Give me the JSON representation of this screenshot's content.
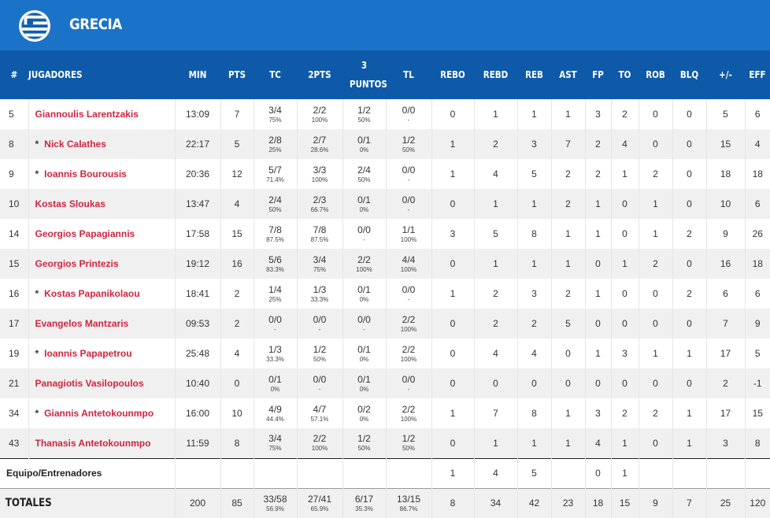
{
  "team": {
    "name": "GRECIA",
    "flag_icon": "greece-flag-icon"
  },
  "colors": {
    "header": "#1b73c7",
    "table_header": "#0f5aa8",
    "player_name": "#d0253f"
  },
  "columns": [
    "#",
    "JUGADORES",
    "MIN",
    "PTS",
    "TC",
    "2PTS",
    "3 PUNTOS",
    "TL",
    "REBO",
    "REBD",
    "REB",
    "AST",
    "FP",
    "TO",
    "ROB",
    "BLQ",
    "+/-",
    "EFF"
  ],
  "players": [
    {
      "num": "5",
      "starter": "",
      "name": "Giannoulis Larentzakis",
      "min": "13:09",
      "pts": "7",
      "tc": "3/4",
      "tc_pct": "75%",
      "p2": "2/2",
      "p2_pct": "100%",
      "p3": "1/2",
      "p3_pct": "50%",
      "tl": "0/0",
      "tl_pct": "-",
      "rebo": "0",
      "rebd": "1",
      "reb": "1",
      "ast": "1",
      "fp": "3",
      "to": "2",
      "rob": "0",
      "blq": "0",
      "pm": "5",
      "eff": "6"
    },
    {
      "num": "8",
      "starter": "*",
      "name": "Nick Calathes",
      "min": "22:17",
      "pts": "5",
      "tc": "2/8",
      "tc_pct": "25%",
      "p2": "2/7",
      "p2_pct": "28.6%",
      "p3": "0/1",
      "p3_pct": "0%",
      "tl": "1/2",
      "tl_pct": "50%",
      "rebo": "1",
      "rebd": "2",
      "reb": "3",
      "ast": "7",
      "fp": "2",
      "to": "4",
      "rob": "0",
      "blq": "0",
      "pm": "15",
      "eff": "4"
    },
    {
      "num": "9",
      "starter": "*",
      "name": "Ioannis Bourousis",
      "min": "20:36",
      "pts": "12",
      "tc": "5/7",
      "tc_pct": "71.4%",
      "p2": "3/3",
      "p2_pct": "100%",
      "p3": "2/4",
      "p3_pct": "50%",
      "tl": "0/0",
      "tl_pct": "-",
      "rebo": "1",
      "rebd": "4",
      "reb": "5",
      "ast": "2",
      "fp": "2",
      "to": "1",
      "rob": "2",
      "blq": "0",
      "pm": "18",
      "eff": "18"
    },
    {
      "num": "10",
      "starter": "",
      "name": "Kostas Sloukas",
      "min": "13:47",
      "pts": "4",
      "tc": "2/4",
      "tc_pct": "50%",
      "p2": "2/3",
      "p2_pct": "66.7%",
      "p3": "0/1",
      "p3_pct": "0%",
      "tl": "0/0",
      "tl_pct": "-",
      "rebo": "0",
      "rebd": "1",
      "reb": "1",
      "ast": "2",
      "fp": "1",
      "to": "0",
      "rob": "1",
      "blq": "0",
      "pm": "10",
      "eff": "6"
    },
    {
      "num": "14",
      "starter": "",
      "name": "Georgios Papagiannis",
      "min": "17:58",
      "pts": "15",
      "tc": "7/8",
      "tc_pct": "87.5%",
      "p2": "7/8",
      "p2_pct": "87.5%",
      "p3": "0/0",
      "p3_pct": "-",
      "tl": "1/1",
      "tl_pct": "100%",
      "rebo": "3",
      "rebd": "5",
      "reb": "8",
      "ast": "1",
      "fp": "1",
      "to": "0",
      "rob": "1",
      "blq": "2",
      "pm": "9",
      "eff": "26"
    },
    {
      "num": "15",
      "starter": "",
      "name": "Georgios Printezis",
      "min": "19:12",
      "pts": "16",
      "tc": "5/6",
      "tc_pct": "83.3%",
      "p2": "3/4",
      "p2_pct": "75%",
      "p3": "2/2",
      "p3_pct": "100%",
      "tl": "4/4",
      "tl_pct": "100%",
      "rebo": "0",
      "rebd": "1",
      "reb": "1",
      "ast": "1",
      "fp": "0",
      "to": "1",
      "rob": "2",
      "blq": "0",
      "pm": "16",
      "eff": "18"
    },
    {
      "num": "16",
      "starter": "*",
      "name": "Kostas Papanikolaou",
      "min": "18:41",
      "pts": "2",
      "tc": "1/4",
      "tc_pct": "25%",
      "p2": "1/3",
      "p2_pct": "33.3%",
      "p3": "0/1",
      "p3_pct": "0%",
      "tl": "0/0",
      "tl_pct": "-",
      "rebo": "1",
      "rebd": "2",
      "reb": "3",
      "ast": "2",
      "fp": "1",
      "to": "0",
      "rob": "0",
      "blq": "2",
      "pm": "6",
      "eff": "6"
    },
    {
      "num": "17",
      "starter": "",
      "name": "Evangelos Mantzaris",
      "min": "09:53",
      "pts": "2",
      "tc": "0/0",
      "tc_pct": "-",
      "p2": "0/0",
      "p2_pct": "-",
      "p3": "0/0",
      "p3_pct": "-",
      "tl": "2/2",
      "tl_pct": "100%",
      "rebo": "0",
      "rebd": "2",
      "reb": "2",
      "ast": "5",
      "fp": "0",
      "to": "0",
      "rob": "0",
      "blq": "0",
      "pm": "7",
      "eff": "9"
    },
    {
      "num": "19",
      "starter": "*",
      "name": "Ioannis Papapetrou",
      "min": "25:48",
      "pts": "4",
      "tc": "1/3",
      "tc_pct": "33.3%",
      "p2": "1/2",
      "p2_pct": "50%",
      "p3": "0/1",
      "p3_pct": "0%",
      "tl": "2/2",
      "tl_pct": "100%",
      "rebo": "0",
      "rebd": "4",
      "reb": "4",
      "ast": "0",
      "fp": "1",
      "to": "3",
      "rob": "1",
      "blq": "1",
      "pm": "17",
      "eff": "5"
    },
    {
      "num": "21",
      "starter": "",
      "name": "Panagiotis Vasilopoulos",
      "min": "10:40",
      "pts": "0",
      "tc": "0/1",
      "tc_pct": "0%",
      "p2": "0/0",
      "p2_pct": "-",
      "p3": "0/1",
      "p3_pct": "0%",
      "tl": "0/0",
      "tl_pct": "-",
      "rebo": "0",
      "rebd": "0",
      "reb": "0",
      "ast": "0",
      "fp": "0",
      "to": "0",
      "rob": "0",
      "blq": "0",
      "pm": "2",
      "eff": "-1"
    },
    {
      "num": "34",
      "starter": "*",
      "name": "Giannis Antetokounmpo",
      "min": "16:00",
      "pts": "10",
      "tc": "4/9",
      "tc_pct": "44.4%",
      "p2": "4/7",
      "p2_pct": "57.1%",
      "p3": "0/2",
      "p3_pct": "0%",
      "tl": "2/2",
      "tl_pct": "100%",
      "rebo": "1",
      "rebd": "7",
      "reb": "8",
      "ast": "1",
      "fp": "3",
      "to": "2",
      "rob": "2",
      "blq": "1",
      "pm": "17",
      "eff": "15"
    },
    {
      "num": "43",
      "starter": "",
      "name": "Thanasis Antetokounmpo",
      "min": "11:59",
      "pts": "8",
      "tc": "3/4",
      "tc_pct": "75%",
      "p2": "2/2",
      "p2_pct": "100%",
      "p3": "1/2",
      "p3_pct": "50%",
      "tl": "1/2",
      "tl_pct": "50%",
      "rebo": "0",
      "rebd": "1",
      "reb": "1",
      "ast": "1",
      "fp": "4",
      "to": "1",
      "rob": "0",
      "blq": "1",
      "pm": "3",
      "eff": "8"
    }
  ],
  "team_row": {
    "label": "Equipo/Entrenadores",
    "rebo": "1",
    "rebd": "4",
    "reb": "5",
    "fp": "0",
    "to": "1"
  },
  "totals": {
    "label": "TOTALES",
    "min": "200",
    "pts": "85",
    "tc": "33/58",
    "tc_pct": "56.9%",
    "p2": "27/41",
    "p2_pct": "65.9%",
    "p3": "6/17",
    "p3_pct": "35.3%",
    "tl": "13/15",
    "tl_pct": "86.7%",
    "rebo": "8",
    "rebd": "34",
    "reb": "42",
    "ast": "23",
    "fp": "18",
    "to": "15",
    "rob": "9",
    "blq": "7",
    "pm": "25",
    "eff": "120"
  }
}
